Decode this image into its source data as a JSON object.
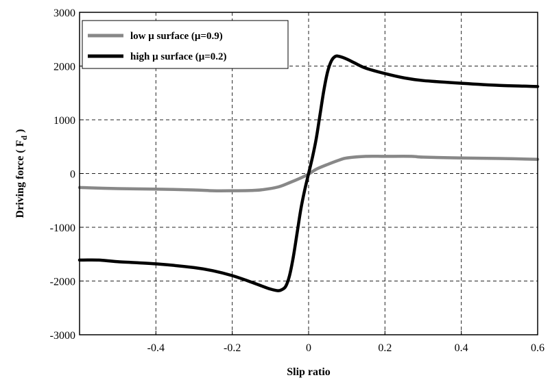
{
  "chart_data": {
    "type": "line",
    "xlabel": "Slip ratio",
    "ylabel_main": "Driving force ( F",
    "ylabel_sub": "d",
    "ylabel_end": " )",
    "xlim": [
      -0.6,
      0.6
    ],
    "ylim": [
      -3000,
      3000
    ],
    "xticks": [
      -0.4,
      -0.2,
      0,
      0.2,
      0.4,
      0.6
    ],
    "xtick_labels": [
      "-0.4",
      "-0.2",
      "0",
      "0.2",
      "0.4",
      "0.6"
    ],
    "yticks": [
      -3000,
      -2000,
      -1000,
      0,
      1000,
      2000,
      3000
    ],
    "ytick_labels": [
      "-3000",
      "-2000",
      "-1000",
      "0",
      "1000",
      "2000",
      "3000"
    ],
    "grid": true,
    "legend_position": "top-left",
    "series": [
      {
        "name": "low μ surface (μ=0.9)",
        "color": "#888888",
        "x": [
          -0.6,
          -0.5,
          -0.4,
          -0.3,
          -0.25,
          -0.2,
          -0.15,
          -0.12,
          -0.08,
          -0.05,
          -0.02,
          0,
          0.02,
          0.05,
          0.08,
          0.1,
          0.15,
          0.2,
          0.27,
          0.3,
          0.4,
          0.5,
          0.6
        ],
        "y": [
          -260,
          -280,
          -290,
          -305,
          -320,
          -320,
          -315,
          -300,
          -250,
          -170,
          -80,
          -10,
          80,
          170,
          250,
          290,
          320,
          320,
          320,
          305,
          290,
          280,
          265
        ]
      },
      {
        "name": "high μ surface (μ=0.2)",
        "color": "#000000",
        "x": [
          -0.6,
          -0.55,
          -0.5,
          -0.4,
          -0.3,
          -0.25,
          -0.2,
          -0.15,
          -0.12,
          -0.1,
          -0.08,
          -0.07,
          -0.06,
          -0.05,
          -0.04,
          -0.03,
          -0.02,
          -0.01,
          0,
          0.01,
          0.02,
          0.03,
          0.04,
          0.05,
          0.06,
          0.07,
          0.08,
          0.1,
          0.12,
          0.15,
          0.2,
          0.25,
          0.3,
          0.4,
          0.5,
          0.6
        ],
        "y": [
          -1610,
          -1610,
          -1640,
          -1680,
          -1750,
          -1810,
          -1900,
          -2020,
          -2100,
          -2150,
          -2180,
          -2160,
          -2100,
          -1900,
          -1550,
          -1100,
          -650,
          -300,
          0,
          300,
          650,
          1100,
          1550,
          1900,
          2100,
          2180,
          2180,
          2130,
          2060,
          1960,
          1860,
          1780,
          1730,
          1680,
          1640,
          1620
        ]
      }
    ]
  }
}
